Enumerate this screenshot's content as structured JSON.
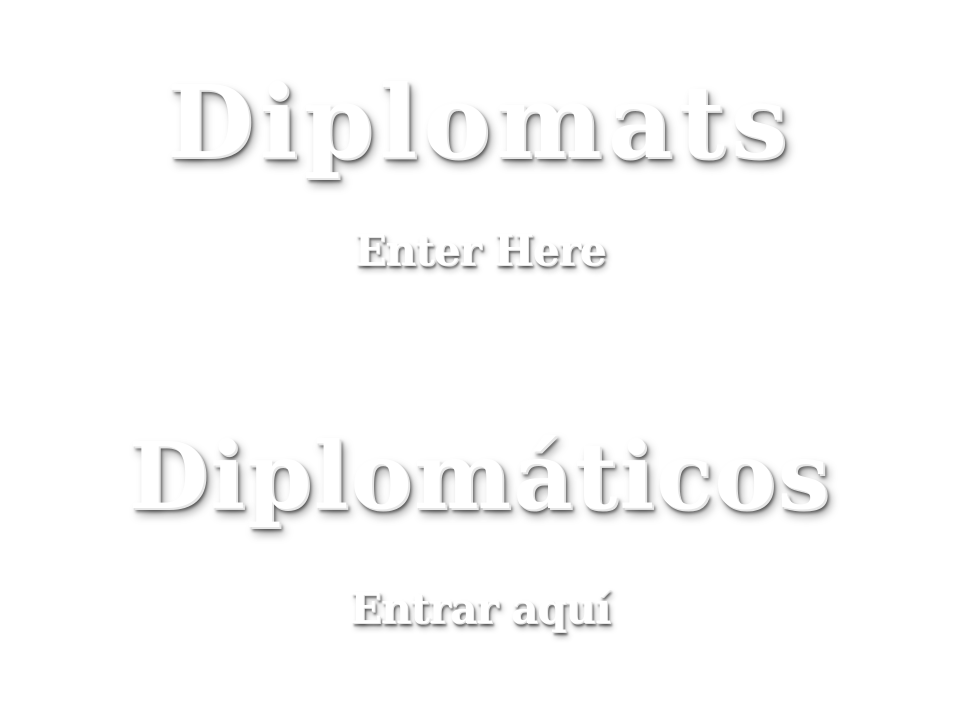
{
  "english": {
    "title": "Diplomats",
    "enter_link": "Enter Here"
  },
  "spanish": {
    "title": "Diplomáticos",
    "enter_link": "Entrar aquí"
  },
  "colors": {
    "background": "#ffffff",
    "text": "#ffffff"
  }
}
